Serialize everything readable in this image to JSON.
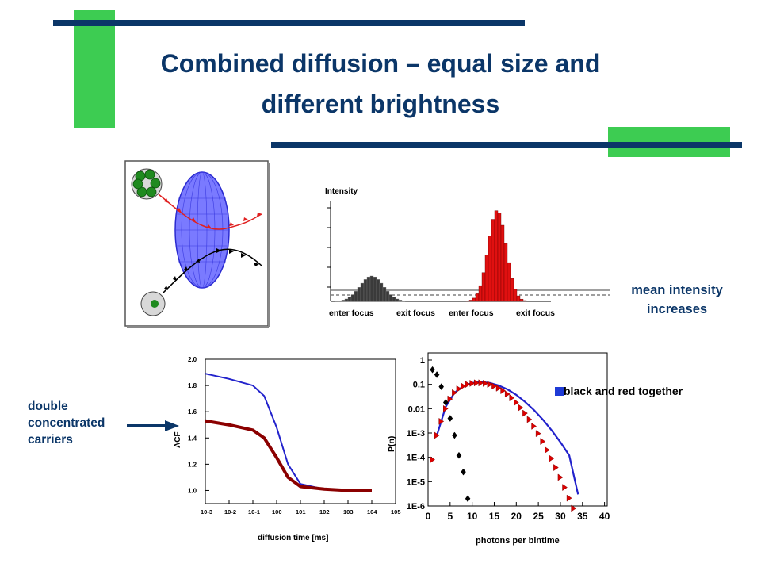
{
  "slide": {
    "title_line1": "Combined diffusion – equal size and",
    "title_line2": "different brightness",
    "colors": {
      "title": "#0b3668",
      "accent_green": "#3dcc52",
      "bar_navy": "#0b3668"
    }
  },
  "intensity_panel": {
    "ylabel": "Intensity",
    "labels": [
      "enter focus",
      "exit focus",
      "enter focus",
      "exit focus"
    ],
    "annotation": "mean intensity increases"
  },
  "acf_chart": {
    "xlabel": "diffusion time [ms]",
    "ylabel": "ACF",
    "yticks": [
      "2.0",
      "1.8",
      "1.6",
      "1.4",
      "1.2",
      "1.0"
    ],
    "xticks": [
      "10-3",
      "10-2",
      "10-1",
      "100",
      "101",
      "102",
      "103",
      "104",
      "105"
    ],
    "annotation": "double concentrated carriers"
  },
  "pn_chart": {
    "xlabel": "photons per bintime",
    "ylabel": "P(n)",
    "yticks": [
      "1",
      "0.1",
      "0.01",
      "1E-3",
      "1E-4",
      "1E-5",
      "1E-6"
    ],
    "xticks": [
      "0",
      "5",
      "10",
      "15",
      "20",
      "25",
      "30",
      "35",
      "40"
    ],
    "legend": "black and red together"
  },
  "chart_data": [
    {
      "type": "line",
      "xlabel": "diffusion time [ms]",
      "ylabel": "ACF",
      "xscale": "log",
      "xlim": [
        0.001,
        100000
      ],
      "ylim": [
        0.9,
        2.0
      ],
      "series": [
        {
          "color": "#2222cc",
          "x": [
            0.001,
            0.01,
            0.1,
            0.3,
            1,
            3,
            10,
            100,
            1000,
            10000
          ],
          "y": [
            1.89,
            1.85,
            1.8,
            1.72,
            1.48,
            1.2,
            1.05,
            1.01,
            1.0,
            1.0
          ]
        },
        {
          "color": "#8b0000",
          "x": [
            0.001,
            0.01,
            0.1,
            0.3,
            1,
            3,
            10,
            100,
            1000,
            10000
          ],
          "y": [
            1.53,
            1.5,
            1.46,
            1.4,
            1.25,
            1.1,
            1.03,
            1.01,
            1.0,
            1.0
          ]
        }
      ]
    },
    {
      "type": "scatter",
      "xlabel": "photons per bintime",
      "ylabel": "P(n)",
      "yscale": "log",
      "xlim": [
        0,
        40
      ],
      "ylim": [
        1e-06,
        1
      ],
      "legend": "black and red together",
      "series": [
        {
          "color": "#000000",
          "x": [
            1,
            2,
            3,
            4,
            5,
            6,
            7,
            8,
            9
          ],
          "y": [
            0.4,
            0.25,
            0.08,
            0.018,
            0.004,
            0.0008,
            0.00012,
            2.5e-05,
            2e-06
          ]
        },
        {
          "color": "#dd0000",
          "x": [
            1,
            2,
            3,
            4,
            5,
            6,
            7,
            8,
            9,
            10,
            11,
            12,
            13,
            14,
            15,
            16,
            17,
            18,
            19,
            20,
            21,
            22,
            23,
            24,
            25,
            26,
            27,
            28,
            29,
            30,
            31,
            32,
            33
          ],
          "y": [
            8e-05,
            0.0008,
            0.003,
            0.01,
            0.025,
            0.045,
            0.065,
            0.085,
            0.1,
            0.11,
            0.115,
            0.115,
            0.11,
            0.1,
            0.085,
            0.07,
            0.055,
            0.04,
            0.028,
            0.018,
            0.011,
            0.0065,
            0.0036,
            0.0019,
            0.00095,
            0.00045,
            0.0002,
            9e-05,
            3.8e-05,
            1.5e-05,
            5.8e-06,
            2.1e-06,
            8e-07
          ]
        },
        {
          "color": "#2222cc",
          "type": "line",
          "x": [
            2,
            4,
            6,
            8,
            10,
            12,
            14,
            16,
            18,
            20,
            22,
            24,
            26,
            28,
            30,
            32,
            34
          ],
          "y": [
            0.0008,
            0.012,
            0.045,
            0.085,
            0.115,
            0.125,
            0.115,
            0.09,
            0.062,
            0.037,
            0.019,
            0.0088,
            0.0036,
            0.0013,
            0.00042,
            0.00012,
            3e-06
          ]
        }
      ]
    }
  ]
}
